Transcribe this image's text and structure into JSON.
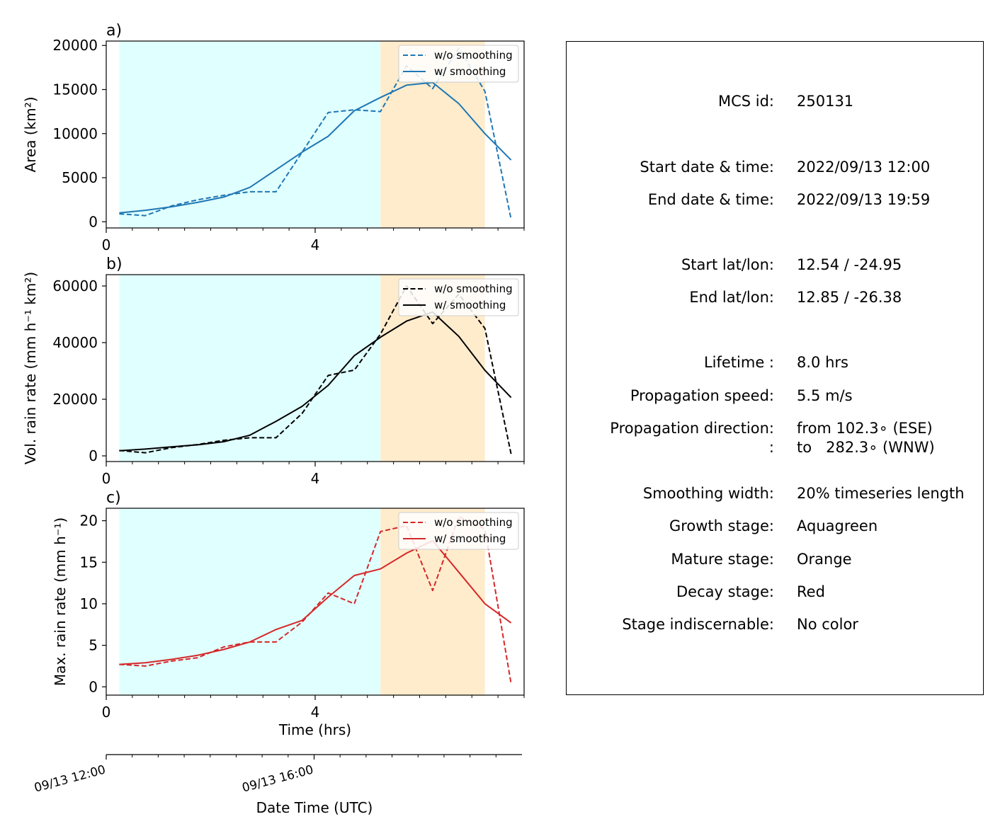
{
  "chart_data": [
    {
      "panel_label": "a)",
      "type": "line",
      "ylabel": "Area  (km²)",
      "xlabel": "",
      "ylim": [
        -700,
        20500
      ],
      "xlim": [
        0,
        8.0
      ],
      "yticks": [
        "0",
        "5000",
        "10000",
        "15000",
        "20000"
      ],
      "ytick_values": [
        0,
        5000,
        10000,
        15000,
        20000
      ],
      "xticks": [
        "0",
        "4"
      ],
      "xtick_values": [
        0,
        4
      ],
      "color": "#1f77b4",
      "stages": [
        {
          "name": "Growth",
          "from": 0.25,
          "to": 5.25,
          "color": "#e0ffff"
        },
        {
          "name": "Mature",
          "from": 5.25,
          "to": 7.25,
          "color": "#ffeccc"
        }
      ],
      "legend": {
        "position": "upper right"
      },
      "series": [
        {
          "name": "w/o smoothing",
          "style": "dashed",
          "x": [
            0.25,
            0.75,
            1.25,
            1.75,
            2.25,
            2.75,
            3.25,
            3.75,
            4.25,
            4.75,
            5.25,
            5.75,
            6.25,
            6.75,
            7.25,
            7.75
          ],
          "y": [
            900,
            700,
            1800,
            2500,
            3000,
            3400,
            3400,
            7900,
            12400,
            12700,
            12500,
            17700,
            15100,
            19700,
            14800,
            300
          ]
        },
        {
          "name": "w/ smoothing",
          "style": "solid",
          "x": [
            0.25,
            0.75,
            1.25,
            1.75,
            2.25,
            2.75,
            3.25,
            3.75,
            4.25,
            4.75,
            5.25,
            5.75,
            6.25,
            6.75,
            7.25,
            7.75
          ],
          "y": [
            1000,
            1300,
            1700,
            2200,
            2800,
            3900,
            5900,
            7900,
            9700,
            12600,
            14100,
            15500,
            15800,
            13400,
            10000,
            7000
          ]
        }
      ]
    },
    {
      "panel_label": "b)",
      "type": "line",
      "ylabel": "Vol. rain rate (mm h⁻¹ km²)",
      "xlabel": "",
      "ylim": [
        -2000,
        64000
      ],
      "xlim": [
        0,
        8.0
      ],
      "yticks": [
        "0",
        "20000",
        "40000",
        "60000"
      ],
      "ytick_values": [
        0,
        20000,
        40000,
        60000
      ],
      "xticks": [
        "0",
        "4"
      ],
      "xtick_values": [
        0,
        4
      ],
      "color": "#000000",
      "stages": [
        {
          "name": "Growth",
          "from": 0.25,
          "to": 5.25,
          "color": "#e0ffff"
        },
        {
          "name": "Mature",
          "from": 5.25,
          "to": 7.25,
          "color": "#ffeccc"
        }
      ],
      "legend": {
        "position": "upper right"
      },
      "series": [
        {
          "name": "w/o smoothing",
          "style": "dashed",
          "x": [
            0.25,
            0.75,
            1.25,
            1.75,
            2.25,
            2.75,
            3.25,
            3.75,
            4.25,
            4.75,
            5.25,
            5.75,
            6.25,
            6.75,
            7.25,
            7.75
          ],
          "y": [
            1900,
            1100,
            2900,
            4000,
            5500,
            6400,
            6400,
            15000,
            28400,
            30300,
            43000,
            60000,
            46700,
            57100,
            45000,
            700
          ]
        },
        {
          "name": "w/ smoothing",
          "style": "solid",
          "x": [
            0.25,
            0.75,
            1.25,
            1.75,
            2.25,
            2.75,
            3.25,
            3.75,
            4.25,
            4.75,
            5.25,
            5.75,
            6.25,
            6.75,
            7.25,
            7.75
          ],
          "y": [
            1800,
            2400,
            3200,
            3900,
            5000,
            7300,
            12200,
            17500,
            24900,
            35400,
            41900,
            47600,
            50800,
            42200,
            30200,
            20600
          ]
        }
      ]
    },
    {
      "panel_label": "c)",
      "type": "line",
      "ylabel": "Max. rain rate  (mm h⁻¹)",
      "xlabel": "Time (hrs)",
      "ylim": [
        -1.0,
        21.5
      ],
      "xlim": [
        0,
        8.0
      ],
      "yticks": [
        "0",
        "5",
        "10",
        "15",
        "20"
      ],
      "ytick_values": [
        0,
        5,
        10,
        15,
        20
      ],
      "xticks": [
        "0",
        "4"
      ],
      "xtick_values": [
        0,
        4
      ],
      "color": "#d62728",
      "stages": [
        {
          "name": "Growth",
          "from": 0.25,
          "to": 5.25,
          "color": "#e0ffff"
        },
        {
          "name": "Mature",
          "from": 5.25,
          "to": 7.25,
          "color": "#ffeccc"
        }
      ],
      "legend": {
        "position": "upper right"
      },
      "series": [
        {
          "name": "w/o smoothing",
          "style": "dashed",
          "x": [
            0.25,
            0.75,
            1.25,
            1.75,
            2.25,
            2.75,
            3.25,
            3.75,
            4.25,
            4.75,
            5.25,
            5.75,
            6.25,
            6.75,
            7.25,
            7.75
          ],
          "y": [
            2.7,
            2.5,
            3.1,
            3.5,
            4.8,
            5.4,
            5.4,
            7.8,
            11.3,
            10.0,
            18.7,
            19.4,
            11.6,
            20.5,
            19.0,
            0.4
          ]
        },
        {
          "name": "w/ smoothing",
          "style": "solid",
          "x": [
            0.25,
            0.75,
            1.25,
            1.75,
            2.25,
            2.75,
            3.25,
            3.75,
            4.25,
            4.75,
            5.25,
            5.75,
            6.25,
            6.75,
            7.25,
            7.75
          ],
          "y": [
            2.7,
            2.9,
            3.3,
            3.8,
            4.5,
            5.4,
            6.9,
            8.0,
            10.8,
            13.4,
            14.2,
            16.1,
            17.6,
            13.8,
            10.0,
            7.7
          ]
        }
      ]
    }
  ],
  "datetime_axis": {
    "label": "Date Time (UTC)",
    "xlim": [
      0,
      8.0
    ],
    "ticks": [
      {
        "value": 0,
        "label": "09/13 12:00"
      },
      {
        "value": 4,
        "label": "09/13 16:00"
      }
    ]
  },
  "info": {
    "rows": [
      {
        "label": "MCS id:",
        "value": "250131"
      },
      {
        "label": "Start date & time:",
        "value": "2022/09/13 12:00"
      },
      {
        "label": "End date & time:",
        "value": "2022/09/13 19:59"
      },
      {
        "label": "Start lat/lon:",
        "value": "12.54 / -24.95"
      },
      {
        "label": "End lat/lon:",
        "value": "12.85 / -26.38"
      },
      {
        "label": "Lifetime :",
        "value": "8.0 hrs"
      },
      {
        "label": "Propagation speed:",
        "value": "5.5 m/s"
      },
      {
        "label": "Propagation direction:",
        "value": "from 102.3∘ (ESE)"
      },
      {
        "label": ":",
        "value": "to   282.3∘ (WNW)"
      },
      {
        "label": "Smoothing width:",
        "value": "20% timeseries length"
      },
      {
        "label": "Growth stage:",
        "value": "Aquagreen"
      },
      {
        "label": "Mature stage:",
        "value": "Orange"
      },
      {
        "label": "Decay stage:",
        "value": "Red"
      },
      {
        "label": "Stage indiscernable:",
        "value": "No color"
      }
    ]
  }
}
